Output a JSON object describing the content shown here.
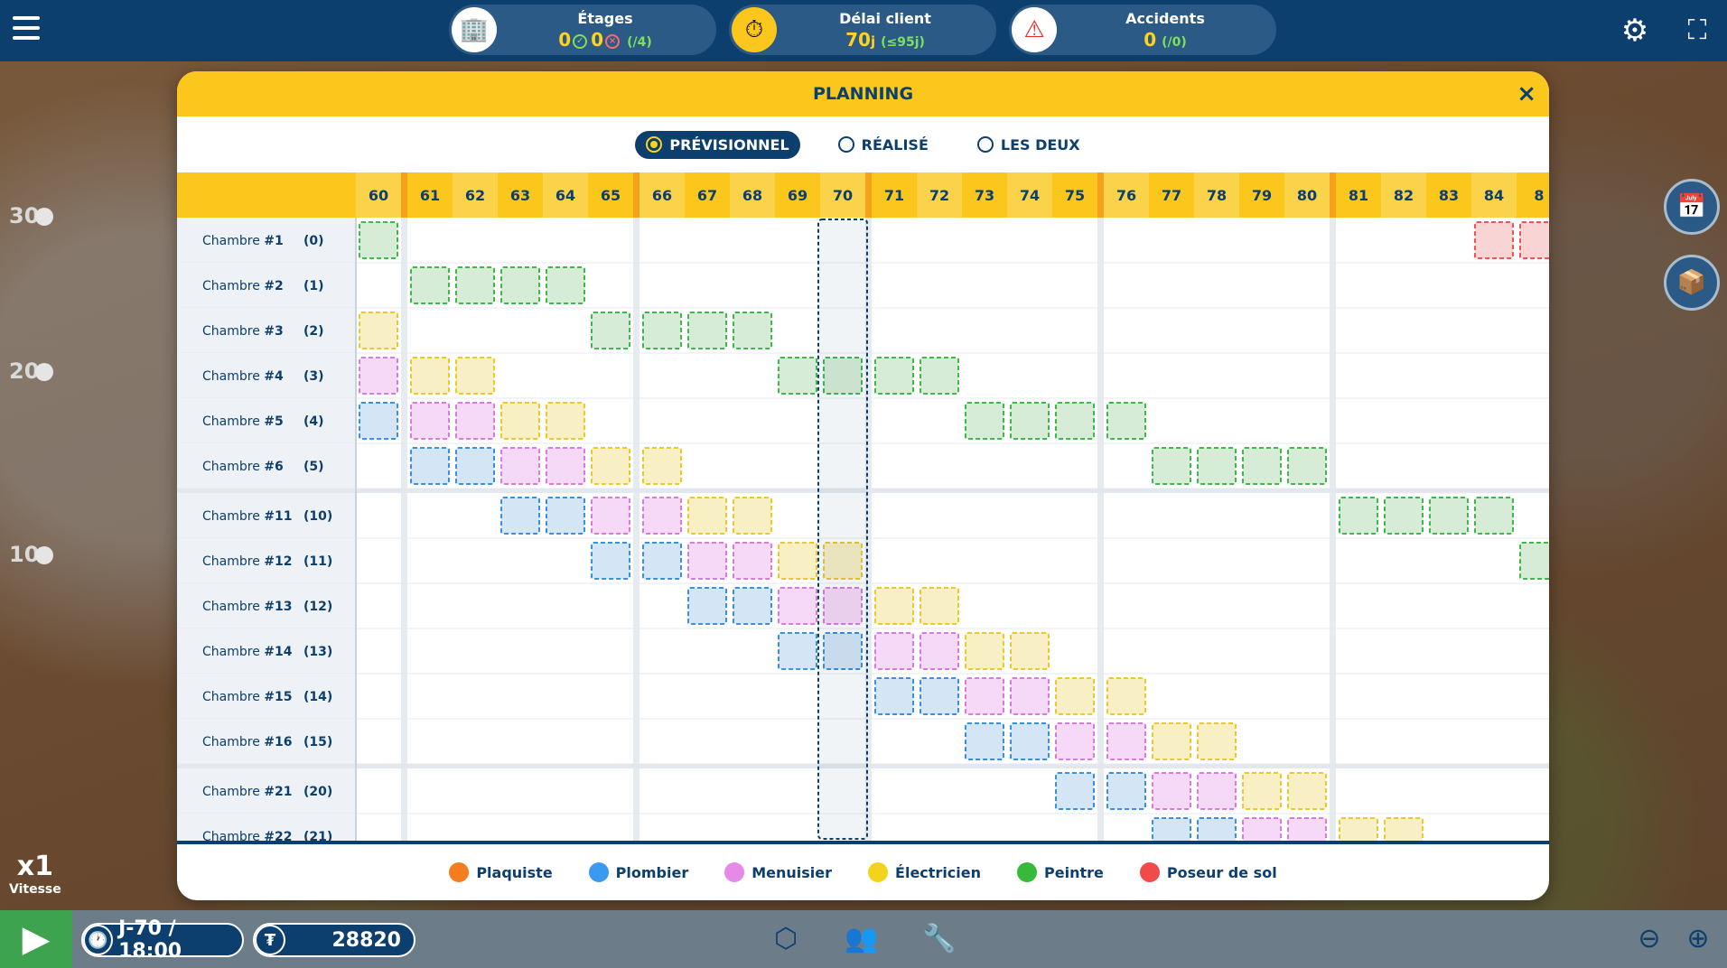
{
  "topbar": {
    "floors": {
      "title": "Étages",
      "done": "0",
      "failed": "0",
      "total": "(/4)"
    },
    "deadline": {
      "title": "Délai client",
      "value": "70",
      "unit": "j",
      "sub": "(≤95j)"
    },
    "accidents": {
      "title": "Accidents",
      "value": "0",
      "sub": "(/0)"
    }
  },
  "left_scale": [
    "30",
    "20",
    "10"
  ],
  "speed": {
    "value": "x1",
    "label": "Vitesse"
  },
  "planning": {
    "title": "PLANNING",
    "close": "×",
    "radios": [
      "PRÉVISIONNEL",
      "RÉALISÉ",
      "LES DEUX"
    ],
    "selected_radio": 0,
    "days": [
      "60",
      "61",
      "62",
      "63",
      "64",
      "65",
      "66",
      "67",
      "68",
      "69",
      "70",
      "71",
      "72",
      "73",
      "74",
      "75",
      "76",
      "77",
      "78",
      "79",
      "80",
      "81",
      "82",
      "83",
      "84",
      "8"
    ],
    "highlight_days": [
      "60",
      "62",
      "64",
      "66",
      "68",
      "70",
      "72",
      "74",
      "76",
      "78",
      "80",
      "82",
      "84"
    ],
    "week_separators_before": [
      "61",
      "66",
      "71",
      "76",
      "81"
    ],
    "current_day": "70",
    "rows": [
      {
        "name": "Chambre ",
        "num": "#1",
        "idx": "(0)",
        "cells": {
          "60": "g",
          "84": "r",
          "8": "r"
        }
      },
      {
        "name": "Chambre ",
        "num": "#2",
        "idx": "(1)",
        "cells": {
          "61": "g",
          "62": "g",
          "63": "g",
          "64": "g"
        }
      },
      {
        "name": "Chambre ",
        "num": "#3",
        "idx": "(2)",
        "cells": {
          "60": "y",
          "65": "g",
          "66": "g",
          "67": "g",
          "68": "g"
        }
      },
      {
        "name": "Chambre ",
        "num": "#4",
        "idx": "(3)",
        "cells": {
          "60": "m",
          "61": "y",
          "62": "y",
          "69": "g",
          "70": "g",
          "71": "g",
          "72": "g"
        }
      },
      {
        "name": "Chambre ",
        "num": "#5",
        "idx": "(4)",
        "cells": {
          "60": "b",
          "61": "m",
          "62": "m",
          "63": "y",
          "64": "y",
          "73": "g",
          "74": "g",
          "75": "g",
          "76": "g"
        }
      },
      {
        "name": "Chambre ",
        "num": "#6",
        "idx": "(5)",
        "cells": {
          "61": "b",
          "62": "b",
          "63": "m",
          "64": "m",
          "65": "y",
          "66": "y",
          "77": "g",
          "78": "g",
          "79": "g",
          "80": "g"
        }
      },
      {
        "name": "Chambre ",
        "num": "#11",
        "idx": "(10)",
        "cells": {
          "63": "b",
          "64": "b",
          "65": "m",
          "66": "m",
          "67": "y",
          "68": "y",
          "81": "g",
          "82": "g",
          "83": "g",
          "84": "g"
        },
        "group_start": true
      },
      {
        "name": "Chambre ",
        "num": "#12",
        "idx": "(11)",
        "cells": {
          "65": "b",
          "66": "b",
          "67": "m",
          "68": "m",
          "69": "y",
          "70": "y",
          "8": "g"
        }
      },
      {
        "name": "Chambre ",
        "num": "#13",
        "idx": "(12)",
        "cells": {
          "67": "b",
          "68": "b",
          "69": "m",
          "70": "m",
          "71": "y",
          "72": "y"
        }
      },
      {
        "name": "Chambre ",
        "num": "#14",
        "idx": "(13)",
        "cells": {
          "69": "b",
          "70": "b",
          "71": "m",
          "72": "m",
          "73": "y",
          "74": "y"
        }
      },
      {
        "name": "Chambre ",
        "num": "#15",
        "idx": "(14)",
        "cells": {
          "71": "b",
          "72": "b",
          "73": "m",
          "74": "m",
          "75": "y",
          "76": "y"
        }
      },
      {
        "name": "Chambre ",
        "num": "#16",
        "idx": "(15)",
        "cells": {
          "73": "b",
          "74": "b",
          "75": "m",
          "76": "m",
          "77": "y",
          "78": "y"
        }
      },
      {
        "name": "Chambre ",
        "num": "#21",
        "idx": "(20)",
        "cells": {
          "75": "b",
          "76": "b",
          "77": "m",
          "78": "m",
          "79": "y",
          "80": "y"
        },
        "group_start": true
      },
      {
        "name": "Chambre ",
        "num": "#22",
        "idx": "(21)",
        "cells": {
          "77": "b",
          "78": "b",
          "79": "m",
          "80": "m",
          "81": "y",
          "82": "y"
        }
      }
    ],
    "legend": [
      {
        "label": "Plaquiste",
        "color": "#f57c1f"
      },
      {
        "label": "Plombier",
        "color": "#3b9af0"
      },
      {
        "label": "Menuisier",
        "color": "#e58ae8"
      },
      {
        "label": "Électricien",
        "color": "#f3d41c"
      },
      {
        "label": "Peintre",
        "color": "#37b93b"
      },
      {
        "label": "Poseur de sol",
        "color": "#f04a4a"
      }
    ]
  },
  "bottombar": {
    "time": "J-70 / 18:00",
    "money": "28820"
  },
  "colors": {
    "primary": "#0d3f6e",
    "accent": "#fcc71d"
  }
}
